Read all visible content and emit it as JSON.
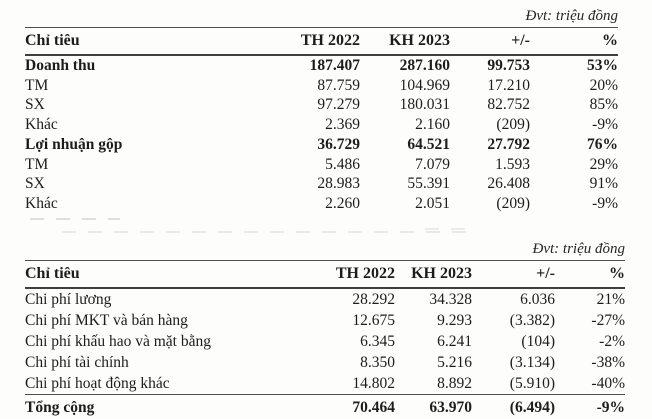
{
  "tables": [
    {
      "unit_label": "Đvt: triệu đồng",
      "headers": [
        "Chỉ tiêu",
        "TH 2022",
        "KH 2023",
        "+/-",
        "%"
      ],
      "rows": [
        {
          "label": "Doanh thu",
          "bold": true,
          "indent": false,
          "values": [
            "187.407",
            "287.160",
            "99.753",
            "53%"
          ]
        },
        {
          "label": "TM",
          "bold": false,
          "indent": true,
          "values": [
            "87.759",
            "104.969",
            "17.210",
            "20%"
          ]
        },
        {
          "label": "SX",
          "bold": false,
          "indent": true,
          "values": [
            "97.279",
            "180.031",
            "82.752",
            "85%"
          ]
        },
        {
          "label": "Khác",
          "bold": false,
          "indent": true,
          "values": [
            "2.369",
            "2.160",
            "(209)",
            "-9%"
          ]
        },
        {
          "label": "Lợi nhuận gộp",
          "bold": true,
          "indent": false,
          "values": [
            "36.729",
            "64.521",
            "27.792",
            "76%"
          ]
        },
        {
          "label": "TM",
          "bold": false,
          "indent": true,
          "values": [
            "5.486",
            "7.079",
            "1.593",
            "29%"
          ]
        },
        {
          "label": "SX",
          "bold": false,
          "indent": true,
          "values": [
            "28.983",
            "55.391",
            "26.408",
            "91%"
          ]
        },
        {
          "label": "Khác",
          "bold": false,
          "indent": true,
          "values": [
            "2.260",
            "2.051",
            "(209)",
            "-9%"
          ]
        }
      ]
    },
    {
      "unit_label": "Đvt: triệu đồng",
      "headers": [
        "Chỉ tiêu",
        "TH 2022",
        "KH 2023",
        "+/-",
        "%"
      ],
      "rows": [
        {
          "label": "Chi phí lương",
          "bold": false,
          "indent": false,
          "values": [
            "28.292",
            "34.328",
            "6.036",
            "21%"
          ]
        },
        {
          "label": "Chi phí MKT và bán hàng",
          "bold": false,
          "indent": false,
          "values": [
            "12.675",
            "9.293",
            "(3.382)",
            "-27%"
          ]
        },
        {
          "label": "Chi phí khấu hao và mặt bằng",
          "bold": false,
          "indent": false,
          "values": [
            "6.345",
            "6.241",
            "(104)",
            "-2%"
          ]
        },
        {
          "label": "Chi phí tài chính",
          "bold": false,
          "indent": false,
          "values": [
            "8.350",
            "5.216",
            "(3.134)",
            "-38%"
          ]
        },
        {
          "label": "Chi phí hoạt động khác",
          "bold": false,
          "indent": false,
          "values": [
            "14.802",
            "8.892",
            "(5.910)",
            "-40%"
          ]
        },
        {
          "label": "Tổng cộng",
          "bold": true,
          "indent": false,
          "total": true,
          "values": [
            "70.464",
            "63.970",
            "(6.494)",
            "-9%"
          ]
        }
      ]
    }
  ],
  "colors": {
    "text": "#1c1c1c",
    "border": "#4e4e4e",
    "background": "#fdfdfc"
  }
}
